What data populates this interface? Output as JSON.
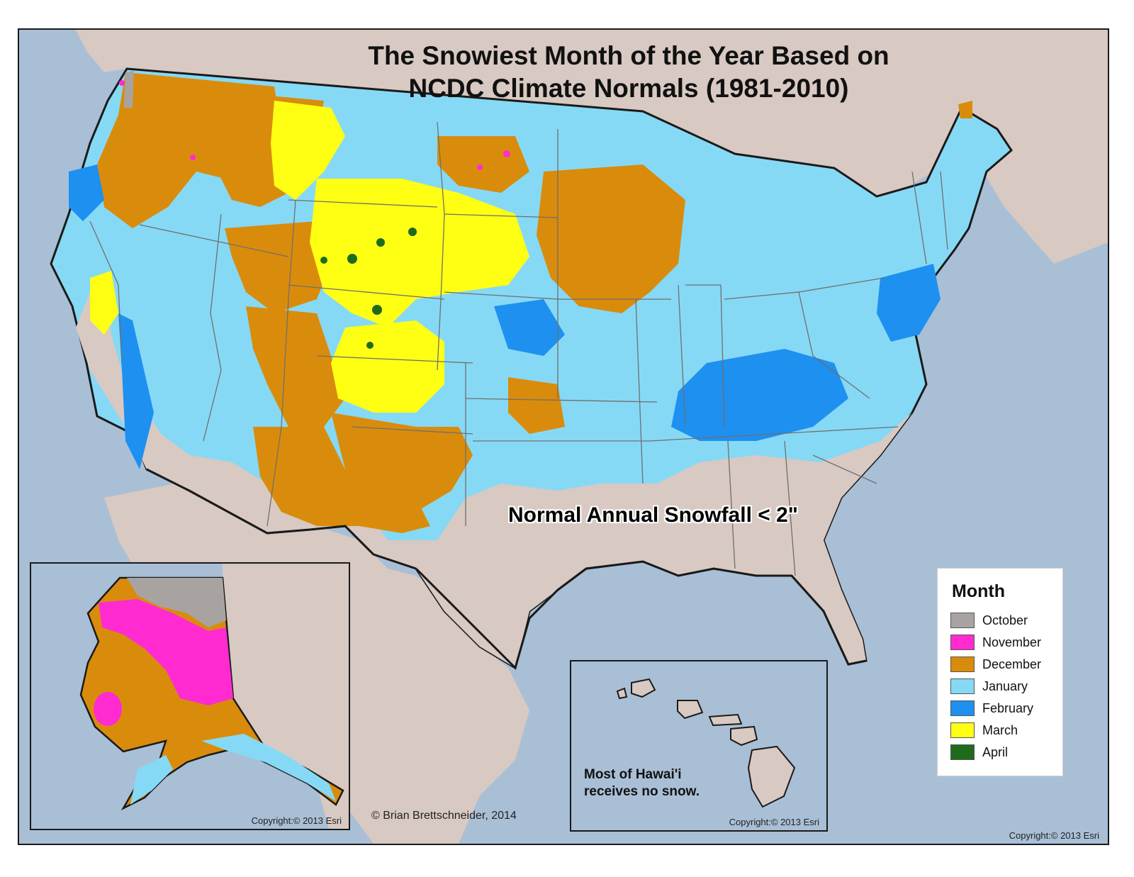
{
  "title": {
    "line1": "The Snowiest Month of the Year Based on",
    "line2": "NCDC Climate Normals (1981-2010)"
  },
  "annotation": "Normal Annual Snowfall < 2\"",
  "hawaii_note": {
    "line1": "Most of Hawai'i",
    "line2": "receives no snow."
  },
  "copyrights": {
    "alaska": "Copyright:© 2013 Esri",
    "hawaii": "Copyright:© 2013 Esri",
    "main": "Copyright:© 2013 Esri"
  },
  "author": "© Brian Brettschneider, 2014",
  "legend": {
    "title": "Month",
    "items": [
      {
        "label": "October",
        "color": "#a8a3a1"
      },
      {
        "label": "November",
        "color": "#ff2bd0"
      },
      {
        "label": "December",
        "color": "#d98c0b"
      },
      {
        "label": "January",
        "color": "#86d9f5"
      },
      {
        "label": "February",
        "color": "#1e90f0"
      },
      {
        "label": "March",
        "color": "#ffff14"
      },
      {
        "label": "April",
        "color": "#1f6b1c"
      }
    ]
  },
  "colors": {
    "ocean": "#a9bfd6",
    "land": "#d8c9c2",
    "border": "#1a1a1a",
    "state_line": "#6f6f6f"
  }
}
